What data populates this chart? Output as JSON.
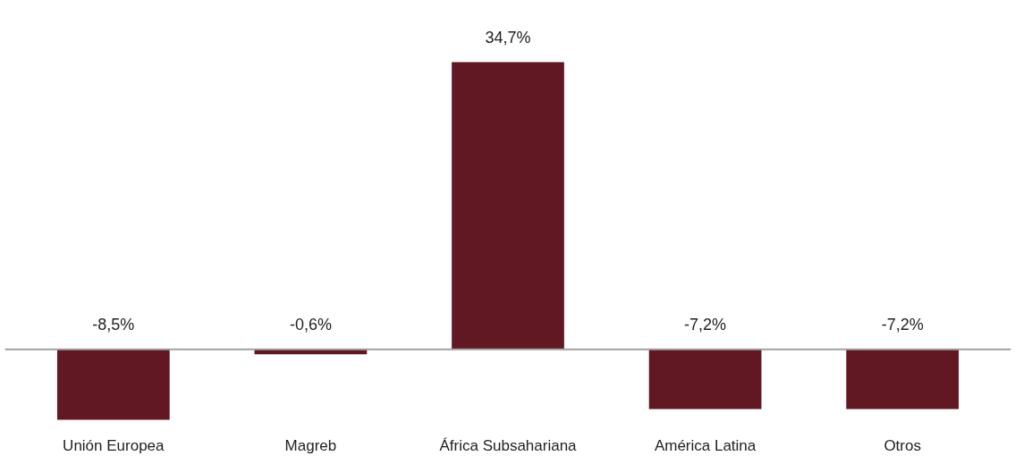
{
  "chart_data": {
    "type": "bar",
    "categories": [
      "Unión Europea",
      "Magreb",
      "África Subsahariana",
      "América Latina",
      "Otros"
    ],
    "values": [
      -8.5,
      -0.6,
      34.7,
      -7.2,
      -7.2
    ],
    "value_labels": [
      "-8,5%",
      "-0,6%",
      "34,7%",
      "-7,2%",
      "-7,2%"
    ],
    "color": "#621822",
    "grid": false
  }
}
